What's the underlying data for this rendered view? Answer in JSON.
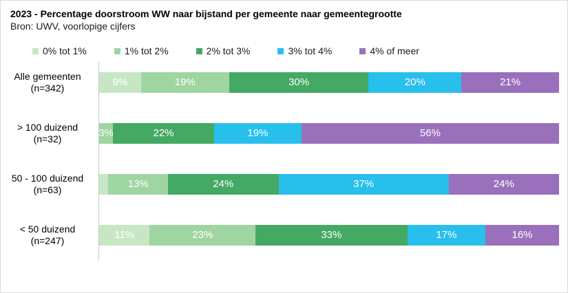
{
  "chart_data": {
    "type": "bar",
    "variant": "stacked-horizontal-100pct",
    "title": "2023 - Percentage doorstroom WW naar bijstand per gemeente naar gemeentegrootte",
    "source": "Bron: UWV, voorlopige cijfers",
    "legend_position": "top",
    "grid": false,
    "axis_color": "#c8c8c8",
    "segment_label_color": "#ffffff",
    "xlim": [
      0,
      100
    ],
    "unit": "%",
    "categories": [
      "Alle gemeenten (n=342)",
      "> 100 duizend (n=32)",
      "50 - 100 duizend (n=63)",
      "< 50 duizend (n=247)"
    ],
    "category_label_lines": [
      [
        "Alle gemeenten",
        "(n=342)"
      ],
      [
        "> 100 duizend",
        "(n=32)"
      ],
      [
        "50 - 100 duizend",
        "(n=63)"
      ],
      [
        "< 50 duizend",
        "(n=247)"
      ]
    ],
    "series": [
      {
        "name": "0% tot 1%",
        "color": "#c7e7c4",
        "values": [
          9,
          0,
          2,
          11
        ],
        "labels": [
          "9%",
          "",
          "",
          "11%"
        ]
      },
      {
        "name": "1% tot 2%",
        "color": "#9fd5a1",
        "values": [
          19,
          3,
          13,
          23
        ],
        "labels": [
          "19%",
          "3%",
          "13%",
          "23%"
        ]
      },
      {
        "name": "2% tot 3%",
        "color": "#44a963",
        "values": [
          30,
          22,
          24,
          33
        ],
        "labels": [
          "30%",
          "22%",
          "24%",
          "33%"
        ]
      },
      {
        "name": "3% tot 4%",
        "color": "#28bfec",
        "values": [
          20,
          19,
          37,
          17
        ],
        "labels": [
          "20%",
          "19%",
          "37%",
          "17%"
        ]
      },
      {
        "name": "4% of meer",
        "color": "#9a70bc",
        "values": [
          21,
          56,
          24,
          16
        ],
        "labels": [
          "21%",
          "56%",
          "24%",
          "16%"
        ]
      }
    ]
  }
}
